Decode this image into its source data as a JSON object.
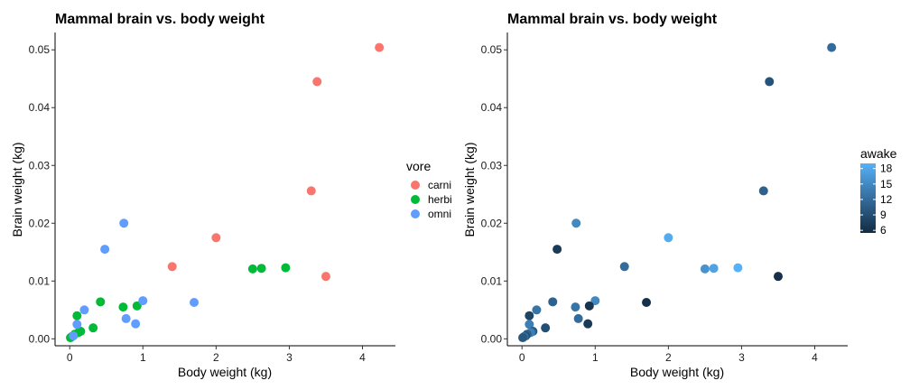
{
  "chart_data": [
    {
      "type": "scatter",
      "title": "Mammal brain vs. body weight",
      "xlabel": "Body weight (kg)",
      "ylabel": "Brain weight (kg)",
      "xlim": [
        -0.2,
        4.45
      ],
      "ylim": [
        -0.0012,
        0.053
      ],
      "x_ticks": [
        0,
        1,
        2,
        3,
        4
      ],
      "x_tick_labels": [
        "0",
        "1",
        "2",
        "3",
        "4"
      ],
      "y_ticks": [
        0,
        0.01,
        0.02,
        0.03,
        0.04,
        0.05
      ],
      "y_tick_labels": [
        "0.00",
        "0.01",
        "0.02",
        "0.03",
        "0.04",
        "0.05"
      ],
      "grid": false,
      "legend": {
        "title": "vore",
        "placement": "right",
        "entries": [
          {
            "label": "carni",
            "color": "#F8766D"
          },
          {
            "label": "herbi",
            "color": "#00BA38"
          },
          {
            "label": "omni",
            "color": "#619CFF"
          }
        ]
      },
      "series": [
        {
          "name": "carni",
          "color": "#F8766D",
          "points": [
            {
              "x": 4.23,
              "y": 0.0504
            },
            {
              "x": 3.38,
              "y": 0.0445
            },
            {
              "x": 3.3,
              "y": 0.0256
            },
            {
              "x": 2.0,
              "y": 0.0175
            },
            {
              "x": 1.4,
              "y": 0.0125
            },
            {
              "x": 3.5,
              "y": 0.0108
            }
          ]
        },
        {
          "name": "herbi",
          "color": "#00BA38",
          "points": [
            {
              "x": 2.5,
              "y": 0.0121
            },
            {
              "x": 2.62,
              "y": 0.0122
            },
            {
              "x": 2.95,
              "y": 0.0123
            },
            {
              "x": 0.42,
              "y": 0.0064
            },
            {
              "x": 0.92,
              "y": 0.0057
            },
            {
              "x": 0.73,
              "y": 0.0055
            },
            {
              "x": 0.1,
              "y": 0.004
            },
            {
              "x": 0.32,
              "y": 0.0019
            },
            {
              "x": 0.15,
              "y": 0.0013
            },
            {
              "x": 0.12,
              "y": 0.0011
            },
            {
              "x": 0.07,
              "y": 0.0008
            },
            {
              "x": 0.03,
              "y": 0.0004
            },
            {
              "x": 0.01,
              "y": 0.0002
            }
          ]
        },
        {
          "name": "omni",
          "color": "#619CFF",
          "points": [
            {
              "x": 0.74,
              "y": 0.02
            },
            {
              "x": 0.48,
              "y": 0.0155
            },
            {
              "x": 1.0,
              "y": 0.0066
            },
            {
              "x": 1.7,
              "y": 0.0063
            },
            {
              "x": 0.2,
              "y": 0.005
            },
            {
              "x": 0.77,
              "y": 0.0035
            },
            {
              "x": 0.9,
              "y": 0.0026
            },
            {
              "x": 0.1,
              "y": 0.0025
            },
            {
              "x": 0.05,
              "y": 0.0005
            }
          ]
        }
      ]
    },
    {
      "type": "scatter",
      "title": "Mammal brain vs. body weight",
      "xlabel": "Body weight (kg)",
      "ylabel": "Brain weight (kg)",
      "xlim": [
        -0.2,
        4.45
      ],
      "ylim": [
        -0.0012,
        0.053
      ],
      "x_ticks": [
        0,
        1,
        2,
        3,
        4
      ],
      "x_tick_labels": [
        "0",
        "1",
        "2",
        "3",
        "4"
      ],
      "y_ticks": [
        0,
        0.01,
        0.02,
        0.03,
        0.04,
        0.05
      ],
      "y_tick_labels": [
        "0.00",
        "0.01",
        "0.02",
        "0.03",
        "0.04",
        "0.05"
      ],
      "grid": false,
      "color_scale": {
        "title": "awake",
        "placement": "right",
        "range": [
          5.5,
          19
        ],
        "low_color": "#132B43",
        "high_color": "#56B1F7",
        "ticks": [
          6,
          9,
          12,
          15,
          18
        ],
        "tick_labels": [
          "6",
          "9",
          "12",
          "15",
          "18"
        ]
      },
      "points": [
        {
          "x": 4.23,
          "y": 0.0504,
          "awake": 12.0
        },
        {
          "x": 3.38,
          "y": 0.0445,
          "awake": 9.5
        },
        {
          "x": 3.3,
          "y": 0.0256,
          "awake": 11.0
        },
        {
          "x": 2.0,
          "y": 0.0175,
          "awake": 18.5
        },
        {
          "x": 1.4,
          "y": 0.0125,
          "awake": 12.0
        },
        {
          "x": 3.5,
          "y": 0.0108,
          "awake": 6.0
        },
        {
          "x": 2.5,
          "y": 0.0121,
          "awake": 16.0
        },
        {
          "x": 2.62,
          "y": 0.0122,
          "awake": 17.5
        },
        {
          "x": 2.95,
          "y": 0.0123,
          "awake": 19.0
        },
        {
          "x": 0.74,
          "y": 0.02,
          "awake": 15.0
        },
        {
          "x": 0.48,
          "y": 0.0155,
          "awake": 7.0
        },
        {
          "x": 1.0,
          "y": 0.0066,
          "awake": 15.0
        },
        {
          "x": 1.7,
          "y": 0.0063,
          "awake": 6.0
        },
        {
          "x": 0.42,
          "y": 0.0064,
          "awake": 11.0
        },
        {
          "x": 0.92,
          "y": 0.0057,
          "awake": 6.5
        },
        {
          "x": 0.73,
          "y": 0.0055,
          "awake": 13.0
        },
        {
          "x": 0.2,
          "y": 0.005,
          "awake": 13.0
        },
        {
          "x": 0.1,
          "y": 0.004,
          "awake": 8.0
        },
        {
          "x": 0.77,
          "y": 0.0035,
          "awake": 12.0
        },
        {
          "x": 0.9,
          "y": 0.0026,
          "awake": 7.0
        },
        {
          "x": 0.1,
          "y": 0.0025,
          "awake": 14.0
        },
        {
          "x": 0.32,
          "y": 0.0019,
          "awake": 9.0
        },
        {
          "x": 0.15,
          "y": 0.0013,
          "awake": 10.0
        },
        {
          "x": 0.12,
          "y": 0.0011,
          "awake": 14.0
        },
        {
          "x": 0.07,
          "y": 0.0008,
          "awake": 11.0
        },
        {
          "x": 0.05,
          "y": 0.0005,
          "awake": 9.0
        },
        {
          "x": 0.03,
          "y": 0.0004,
          "awake": 12.0
        },
        {
          "x": 0.01,
          "y": 0.0002,
          "awake": 10.0
        }
      ]
    }
  ]
}
